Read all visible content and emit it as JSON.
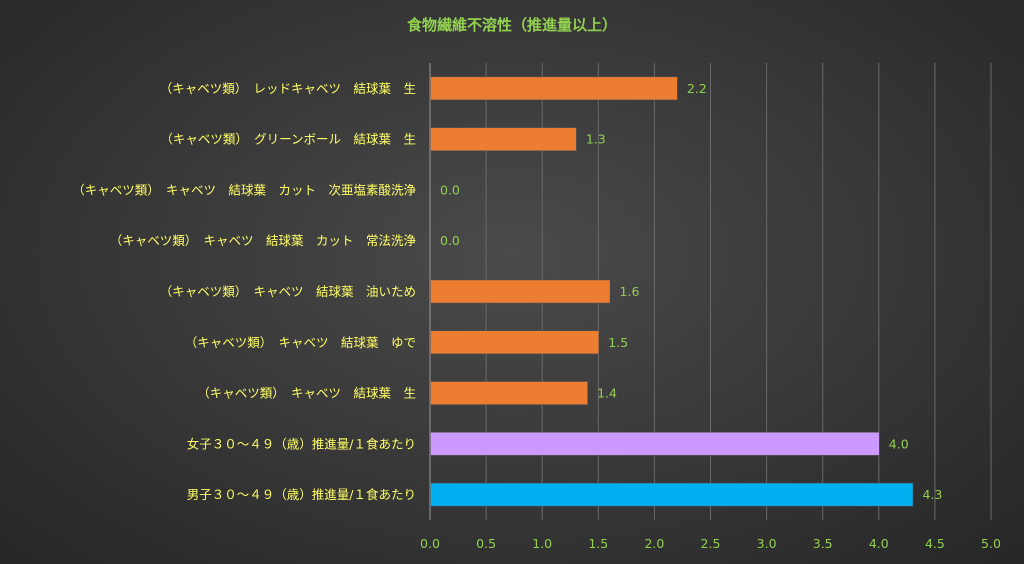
{
  "chart_data": {
    "type": "bar",
    "orientation": "horizontal",
    "title": "食物繊維不溶性（推進量以上）",
    "xlim": [
      0,
      5
    ],
    "xticks": [
      "0.0",
      "0.5",
      "1.0",
      "1.5",
      "2.0",
      "2.5",
      "3.0",
      "3.5",
      "4.0",
      "4.5",
      "5.0"
    ],
    "grid": true,
    "categories": [
      "（キャベツ類）　レッドキャベツ　結球葉　生",
      "（キャベツ類）　グリーンボール　結球葉　生",
      "（キャベツ類）　キャベツ　結球葉　カット　次亜塩素酸洗浄",
      "（キャベツ類）　キャベツ　結球葉　カット　常法洗浄",
      "（キャベツ類）　キャベツ　結球葉　油いため",
      "（キャベツ類）　キャベツ　結球葉　ゆで",
      "（キャベツ類）　キャベツ　結球葉　生",
      "女子３０～４９（歳）推進量/１食あたり",
      "男子３０～４９（歳）推進量/１食あたり"
    ],
    "values": [
      2.2,
      1.3,
      0.0,
      0.0,
      1.6,
      1.5,
      1.4,
      4.0,
      4.3
    ],
    "data_labels": [
      "2.2",
      "1.3",
      "0.0",
      "0.0",
      "1.6",
      "1.5",
      "1.4",
      "4.0",
      "4.3"
    ],
    "bar_colors": [
      "#ed7d31",
      "#ed7d31",
      "#ed7d31",
      "#ed7d31",
      "#ed7d31",
      "#ed7d31",
      "#ed7d31",
      "#cc99ff",
      "#00b0f0"
    ]
  }
}
